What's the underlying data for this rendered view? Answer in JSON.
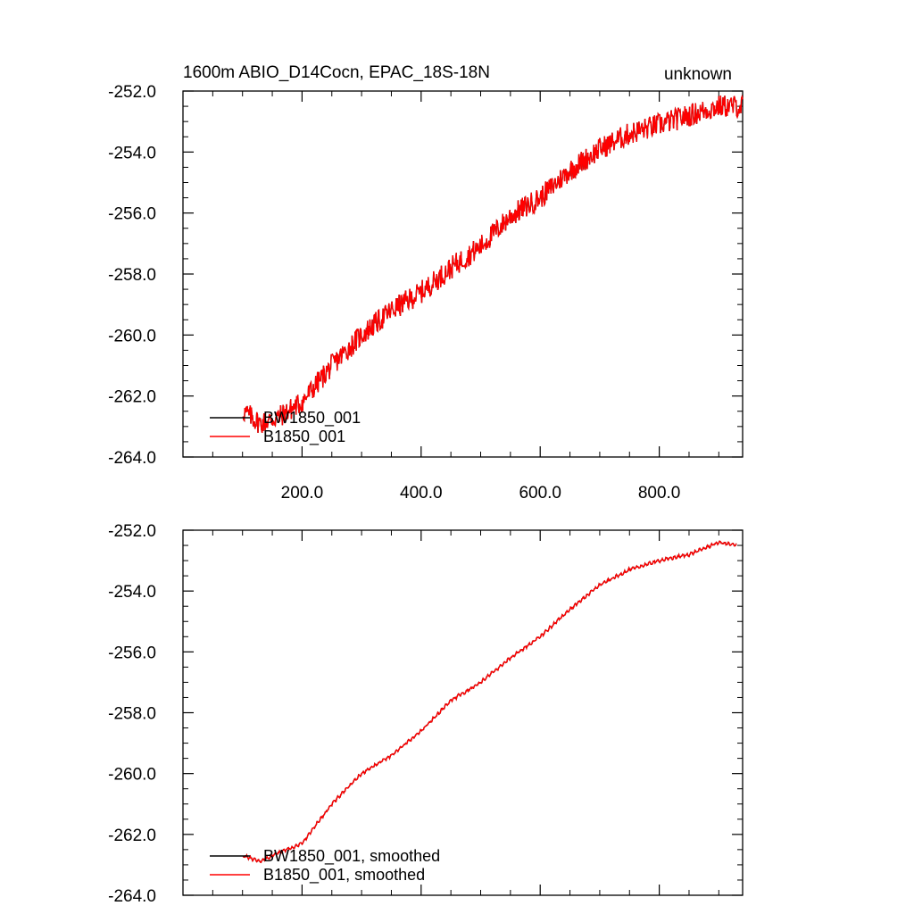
{
  "colors": {
    "series_black": "#000000",
    "series_red": "#ff0000"
  },
  "chart_data": [
    {
      "type": "line",
      "title": "1600m ABIO_D14Cocn, EPAC_18S-18N",
      "right_title": "unknown",
      "xlabel": "",
      "ylabel": "",
      "xlim": [
        0,
        940
      ],
      "ylim": [
        -264,
        -252
      ],
      "x_ticks": [
        200,
        400,
        600,
        800
      ],
      "x_tick_labels": [
        "200.0",
        "400.0",
        "600.0",
        "800.0"
      ],
      "y_ticks": [
        -252,
        -254,
        -256,
        -258,
        -260,
        -262,
        -264
      ],
      "y_tick_labels": [
        "-252.0",
        "-254.0",
        "-256.0",
        "-258.0",
        "-260.0",
        "-262.0",
        "-264.0"
      ],
      "legend_position": "bottom-left",
      "series": [
        {
          "name": "BW1850_001",
          "color": "#000000",
          "noisy": true,
          "x": [
            101,
            130,
            160,
            200,
            250,
            300,
            350,
            400,
            450,
            500,
            550,
            600,
            650,
            700,
            750,
            800,
            850,
            900,
            940
          ],
          "values": [
            -262.5,
            -262.9,
            -262.7,
            -262.2,
            -261.0,
            -260.0,
            -259.2,
            -258.6,
            -257.8,
            -257.1,
            -256.1,
            -255.5,
            -254.6,
            -253.9,
            -253.4,
            -253.1,
            -252.8,
            -252.5,
            -252.5
          ]
        },
        {
          "name": "B1850_001",
          "color": "#ff0000",
          "noisy": true,
          "x": [
            101,
            130,
            160,
            200,
            250,
            300,
            350,
            400,
            450,
            500,
            550,
            600,
            650,
            700,
            750,
            800,
            850,
            900,
            940
          ],
          "values": [
            -262.5,
            -262.9,
            -262.7,
            -262.2,
            -261.0,
            -260.0,
            -259.2,
            -258.6,
            -257.8,
            -257.1,
            -256.1,
            -255.5,
            -254.6,
            -253.9,
            -253.4,
            -253.1,
            -252.8,
            -252.5,
            -252.5
          ]
        }
      ]
    },
    {
      "type": "line",
      "title": "",
      "xlabel": "",
      "ylabel": "",
      "xlim": [
        0,
        940
      ],
      "ylim": [
        -264,
        -252
      ],
      "x_ticks": [
        200,
        400,
        600,
        800
      ],
      "x_tick_labels": [],
      "y_ticks": [
        -252,
        -254,
        -256,
        -258,
        -260,
        -262,
        -264
      ],
      "y_tick_labels": [
        "-252.0",
        "-254.0",
        "-256.0",
        "-258.0",
        "-260.0",
        "-262.0",
        "-264.0"
      ],
      "legend_position": "bottom-left",
      "series": [
        {
          "name": "BW1850_001, smoothed",
          "color": "#000000",
          "noisy": false,
          "x": [
            101,
            130,
            160,
            200,
            250,
            300,
            350,
            400,
            450,
            500,
            550,
            600,
            650,
            700,
            750,
            800,
            850,
            900,
            930
          ],
          "values": [
            -262.7,
            -262.9,
            -262.6,
            -262.3,
            -261.0,
            -260.0,
            -259.4,
            -258.6,
            -257.6,
            -257.0,
            -256.2,
            -255.5,
            -254.6,
            -253.8,
            -253.3,
            -253.0,
            -252.8,
            -252.4,
            -252.5
          ]
        },
        {
          "name": "B1850_001, smoothed",
          "color": "#ff0000",
          "noisy": false,
          "x": [
            101,
            130,
            160,
            200,
            250,
            300,
            350,
            400,
            450,
            500,
            550,
            600,
            650,
            700,
            750,
            800,
            850,
            900,
            930
          ],
          "values": [
            -262.7,
            -262.9,
            -262.6,
            -262.3,
            -261.0,
            -260.0,
            -259.4,
            -258.6,
            -257.6,
            -257.0,
            -256.2,
            -255.5,
            -254.6,
            -253.8,
            -253.3,
            -253.0,
            -252.8,
            -252.4,
            -252.5
          ]
        }
      ]
    }
  ]
}
